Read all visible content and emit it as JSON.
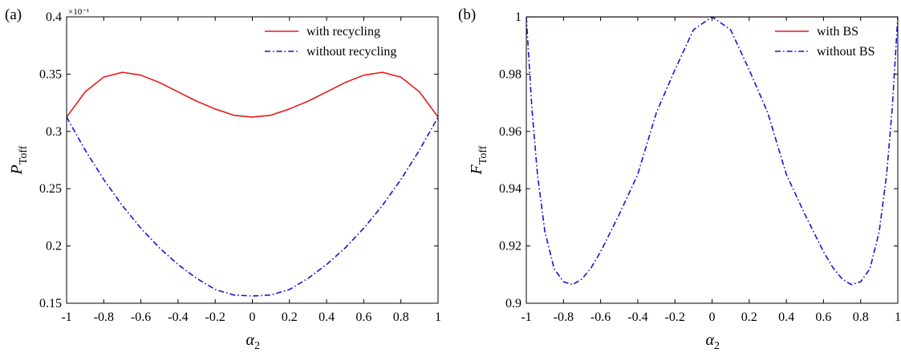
{
  "chart_data": [
    {
      "type": "line",
      "panel_label": "(a)",
      "xlabel": {
        "symbol": "α",
        "sub": "2"
      },
      "ylabel": {
        "symbol": "P",
        "sub": "Toff"
      },
      "xlim": [
        -1,
        1
      ],
      "ylim": [
        0.15,
        0.4
      ],
      "xticks": [
        "-1",
        "-0.8",
        "-0.6",
        "-0.4",
        "-0.2",
        "0",
        "0.2",
        "0.4",
        "0.6",
        "0.8",
        "1"
      ],
      "yticks": [
        "0.15",
        "0.2",
        "0.25",
        "0.3",
        "0.35",
        "0.4"
      ],
      "y_exponent_label": "×10⁻¹",
      "grid": false,
      "legend_position": "top-right",
      "x": [
        -1,
        -0.9,
        -0.8,
        -0.7,
        -0.6,
        -0.5,
        -0.4,
        -0.3,
        -0.2,
        -0.1,
        0,
        0.1,
        0.2,
        0.3,
        0.4,
        0.5,
        0.6,
        0.7,
        0.8,
        0.9,
        1
      ],
      "series": [
        {
          "name": "with recycling",
          "color": "#e8191b",
          "dash": "solid",
          "values": [
            0.3125,
            0.3345,
            0.3474,
            0.3516,
            0.3491,
            0.3427,
            0.3345,
            0.3264,
            0.3196,
            0.3141,
            0.3125,
            0.3141,
            0.3196,
            0.3264,
            0.3345,
            0.3427,
            0.3491,
            0.3516,
            0.3474,
            0.3345,
            0.3125
          ]
        },
        {
          "name": "without recycling",
          "color": "#1414d8",
          "dash": "dashdot",
          "values": [
            0.3125,
            0.2837,
            0.258,
            0.2353,
            0.2155,
            0.1983,
            0.1838,
            0.1717,
            0.162,
            0.1572,
            0.1563,
            0.1572,
            0.162,
            0.1717,
            0.1838,
            0.1983,
            0.2155,
            0.2353,
            0.258,
            0.2837,
            0.3125
          ]
        }
      ]
    },
    {
      "type": "line",
      "panel_label": "(b)",
      "xlabel": {
        "symbol": "α",
        "sub": "2"
      },
      "ylabel": {
        "symbol": "F",
        "sub": "Toff"
      },
      "xlim": [
        -1,
        1
      ],
      "ylim": [
        0.9,
        1.0
      ],
      "xticks": [
        "-1",
        "-0.8",
        "-0.6",
        "-0.4",
        "-0.2",
        "0",
        "0.2",
        "0.4",
        "0.6",
        "0.8",
        "1"
      ],
      "yticks": [
        "0.9",
        "0.92",
        "0.94",
        "0.96",
        "0.98",
        "1"
      ],
      "grid": false,
      "legend_position": "top-right",
      "x": [
        -1,
        -0.97,
        -0.94,
        -0.9,
        -0.85,
        -0.8,
        -0.75,
        -0.7,
        -0.65,
        -0.6,
        -0.5,
        -0.4,
        -0.3,
        -0.2,
        -0.1,
        0,
        0.1,
        0.2,
        0.3,
        0.4,
        0.5,
        0.6,
        0.65,
        0.7,
        0.75,
        0.8,
        0.85,
        0.9,
        0.94,
        0.97,
        1
      ],
      "series": [
        {
          "name": "with BS",
          "color": "#e8191b",
          "dash": "solid",
          "values": [
            1,
            1,
            1,
            1,
            1,
            1,
            1,
            1,
            1,
            1,
            1,
            1,
            1,
            1,
            1,
            1,
            1,
            1,
            1,
            1,
            1,
            1,
            1,
            1,
            1,
            1,
            1,
            1,
            1,
            1,
            1
          ]
        },
        {
          "name": "without BS",
          "color": "#1414d8",
          "dash": "dashdot",
          "values": [
            1.0,
            0.968,
            0.945,
            0.925,
            0.912,
            0.9075,
            0.9065,
            0.9085,
            0.9125,
            0.918,
            0.931,
            0.945,
            0.9665,
            0.9815,
            0.9955,
            1.0,
            0.9955,
            0.9815,
            0.9665,
            0.945,
            0.931,
            0.918,
            0.9125,
            0.9085,
            0.9065,
            0.9075,
            0.912,
            0.925,
            0.945,
            0.968,
            1.0
          ]
        }
      ]
    }
  ]
}
